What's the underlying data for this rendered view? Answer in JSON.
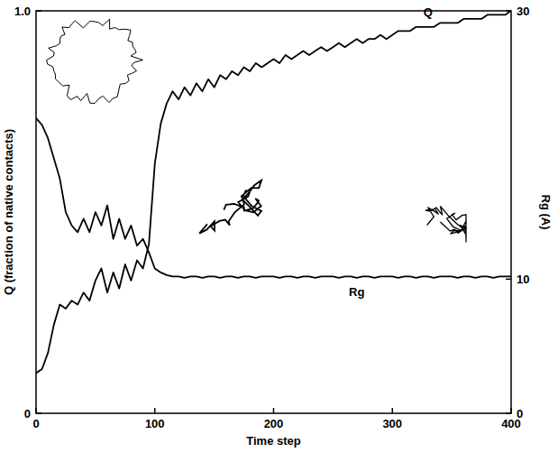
{
  "chart_data": {
    "type": "line",
    "xlabel": "Time step",
    "ylabel": "Q (fraction of native contacts)",
    "y2label": "Rg (A)",
    "x": [
      0,
      5,
      10,
      15,
      20,
      25,
      30,
      35,
      40,
      45,
      50,
      55,
      60,
      65,
      70,
      75,
      80,
      85,
      90,
      95,
      100,
      105,
      110,
      115,
      120,
      125,
      130,
      135,
      140,
      145,
      150,
      155,
      160,
      165,
      170,
      175,
      180,
      185,
      190,
      195,
      200,
      205,
      210,
      215,
      220,
      225,
      230,
      235,
      240,
      245,
      250,
      255,
      260,
      265,
      270,
      275,
      280,
      285,
      290,
      295,
      300,
      305,
      310,
      315,
      320,
      325,
      330,
      335,
      340,
      345,
      350,
      355,
      360,
      365,
      370,
      375,
      380,
      385,
      390,
      395,
      400
    ],
    "series": [
      {
        "name": "Q",
        "color": "#000000",
        "values": [
          0.1,
          0.11,
          0.15,
          0.22,
          0.27,
          0.26,
          0.28,
          0.27,
          0.3,
          0.28,
          0.33,
          0.36,
          0.3,
          0.35,
          0.31,
          0.37,
          0.33,
          0.38,
          0.36,
          0.42,
          0.62,
          0.72,
          0.77,
          0.8,
          0.78,
          0.81,
          0.79,
          0.82,
          0.8,
          0.83,
          0.81,
          0.84,
          0.83,
          0.85,
          0.84,
          0.86,
          0.85,
          0.87,
          0.86,
          0.87,
          0.88,
          0.87,
          0.89,
          0.88,
          0.89,
          0.9,
          0.89,
          0.9,
          0.91,
          0.9,
          0.91,
          0.92,
          0.91,
          0.92,
          0.93,
          0.92,
          0.93,
          0.93,
          0.94,
          0.93,
          0.94,
          0.95,
          0.95,
          0.95,
          0.96,
          0.96,
          0.96,
          0.96,
          0.97,
          0.97,
          0.97,
          0.97,
          0.98,
          0.98,
          0.98,
          0.98,
          0.99,
          0.99,
          0.99,
          0.99,
          1.0
        ]
      },
      {
        "name": "Rg",
        "color": "#000000",
        "axis": "y2",
        "values": [
          22.0,
          21.5,
          20.5,
          19.0,
          17.5,
          15.0,
          14.0,
          13.5,
          14.5,
          13.5,
          15.0,
          14.0,
          15.5,
          13.0,
          14.5,
          13.0,
          14.0,
          12.5,
          13.0,
          12.0,
          10.8,
          10.5,
          10.3,
          10.2,
          10.2,
          10.1,
          10.2,
          10.2,
          10.1,
          10.2,
          10.2,
          10.1,
          10.2,
          10.2,
          10.1,
          10.2,
          10.2,
          10.1,
          10.2,
          10.2,
          10.2,
          10.1,
          10.2,
          10.2,
          10.1,
          10.2,
          10.2,
          10.1,
          10.2,
          10.2,
          10.2,
          10.1,
          10.2,
          10.2,
          10.1,
          10.2,
          10.2,
          10.1,
          10.2,
          10.2,
          10.2,
          10.1,
          10.2,
          10.2,
          10.1,
          10.2,
          10.2,
          10.1,
          10.2,
          10.2,
          10.2,
          10.1,
          10.2,
          10.2,
          10.1,
          10.2,
          10.2,
          10.1,
          10.2,
          10.2,
          10.2
        ]
      }
    ],
    "xlim": [
      0,
      400
    ],
    "xticks": [
      0,
      100,
      200,
      300,
      400
    ],
    "ylim": [
      0,
      1
    ],
    "yticks": [
      0,
      {
        "value": 1,
        "label": "1.0"
      }
    ],
    "y2lim": [
      0,
      30
    ],
    "y2ticks": [
      0,
      10,
      30
    ],
    "grid": false
  }
}
